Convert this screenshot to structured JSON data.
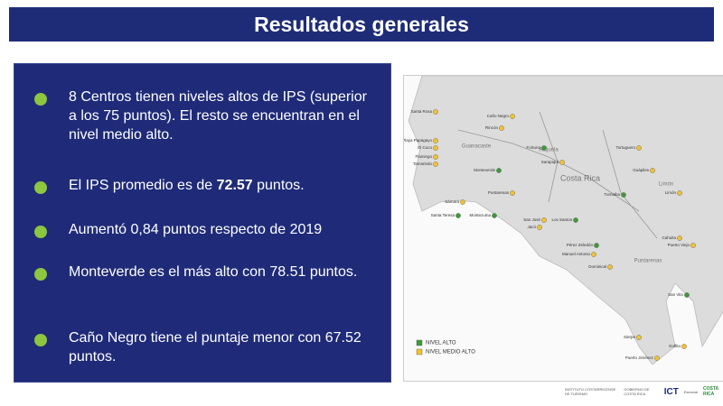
{
  "header": {
    "title": "Resultados generales"
  },
  "bullets": [
    {
      "text": "8 Centros tienen niveles altos de IPS (superior a los 75 puntos). El resto se encuentran en el nivel medio alto."
    },
    {
      "text": "El IPS promedio es de ",
      "bold": "72.57",
      "after": " puntos."
    },
    {
      "text": "Aumentó 0,84 puntos respecto de 2019"
    },
    {
      "text": "Monteverde es el más alto con 78.51 puntos."
    },
    {
      "text": "Caño Negro tiene el puntaje menor con 67.52 puntos."
    }
  ],
  "map": {
    "regions": [
      "Guanacaste",
      "Alajuela",
      "Costa Rica",
      "Limón",
      "Puntarenas"
    ],
    "legend": [
      {
        "label": "NIVEL ALTO",
        "color": "#3f9a3a",
        "sites": [
          "Fortuna",
          "Monteverde",
          "Turrialba",
          "Los Santos",
          "Pérez Zeledón",
          "San Vito",
          "Montezuma",
          "Santa Teresa"
        ]
      },
      {
        "label": "NIVEL MEDIO ALTO",
        "color": "#f2c230",
        "sites": [
          "Santa Rosa",
          "Caño Negro",
          "Rincón",
          "Playa Papagayo",
          "El Coco",
          "Flamingo",
          "Tamarindo",
          "Sámara",
          "Sarapiquí",
          "Tortuguero",
          "Guápiles",
          "Limón",
          "Cahuita",
          "Puerto Viejo",
          "Puntarenas",
          "San José",
          "Jacó",
          "Manuel Antonio",
          "Dominical",
          "Golfito",
          "Puerto Jiménez",
          "Sierpe"
        ]
      }
    ]
  },
  "logos": [
    "INSTITUTO COSTARRICENSE DE TURISMO",
    "GOBIERNO DE COSTA RICA",
    "ICT",
    "Esencial",
    "COSTA RICA"
  ]
}
